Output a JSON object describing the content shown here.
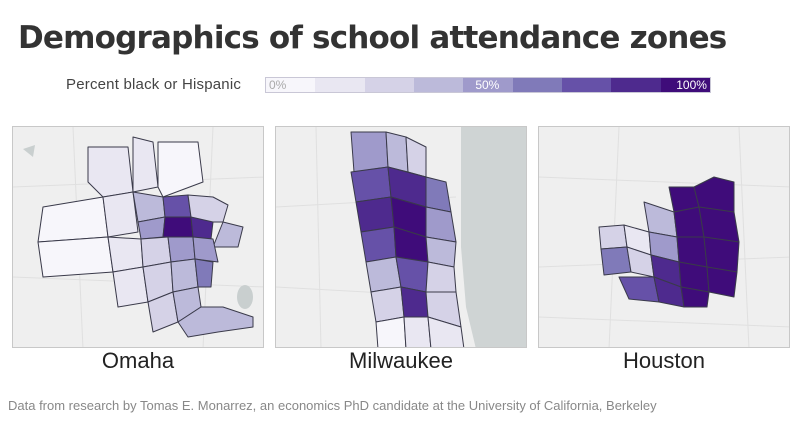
{
  "title": "Demographics of school attendance zones",
  "legend": {
    "label": "Percent black or Hispanic",
    "ticks": [
      "0%",
      "50%",
      "100%"
    ],
    "colors": [
      "#f7f6fb",
      "#e9e7f2",
      "#d5d2e7",
      "#bcbada",
      "#9f9acb",
      "#807ab9",
      "#6651a8",
      "#4e2a8e",
      "#3f0c7a"
    ]
  },
  "maps": [
    {
      "city": "Omaha"
    },
    {
      "city": "Milwaukee"
    },
    {
      "city": "Houston"
    }
  ],
  "source": "Data from research by Tomas E. Monarrez, an economics PhD candidate at the University of California, Berkeley"
}
